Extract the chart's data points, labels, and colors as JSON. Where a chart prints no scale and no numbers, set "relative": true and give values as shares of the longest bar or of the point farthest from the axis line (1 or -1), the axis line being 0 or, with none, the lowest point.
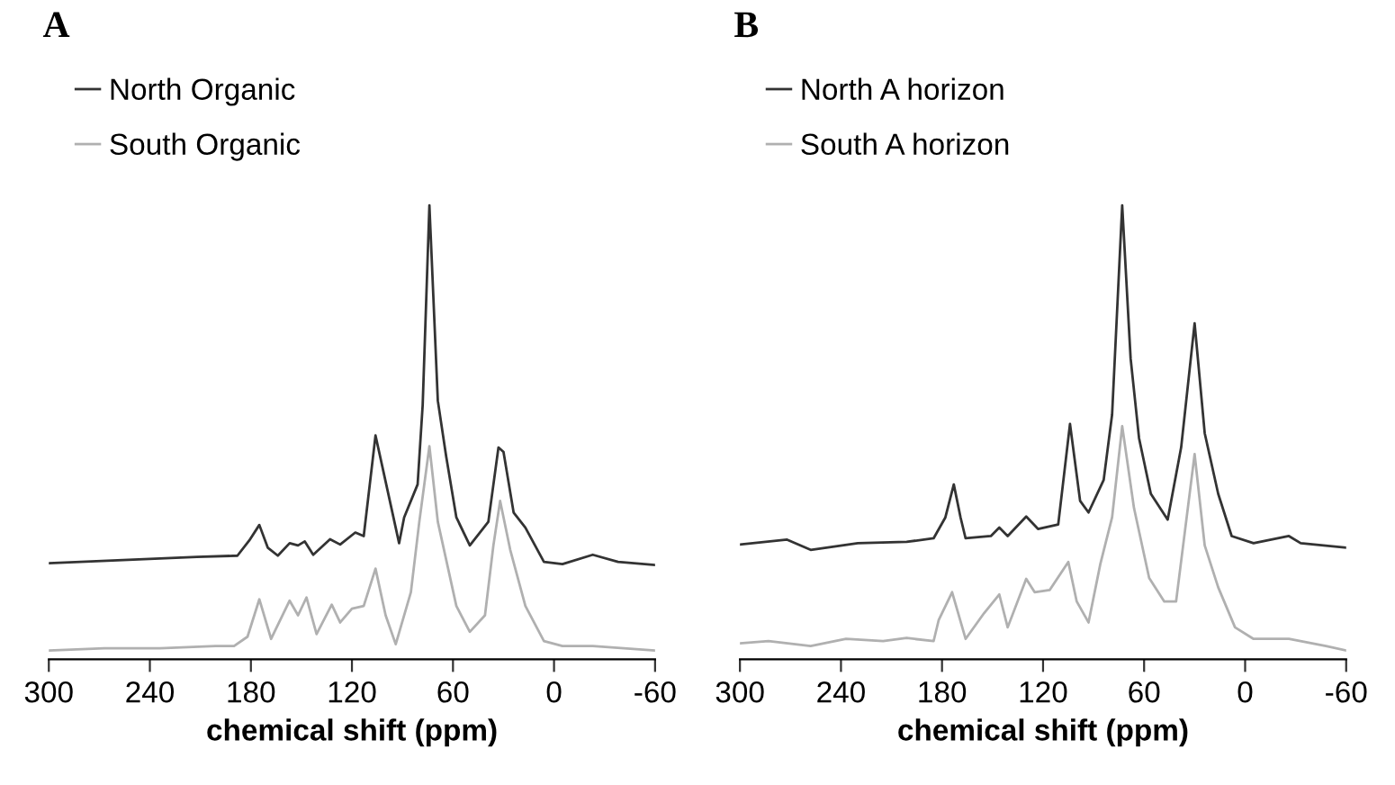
{
  "chart_data": [
    {
      "type": "line",
      "title": "A",
      "xlabel": "chemical shift (ppm)",
      "relative": true,
      "xlim": [
        300,
        -60
      ],
      "xticks": [
        300,
        240,
        180,
        120,
        60,
        0,
        -60
      ],
      "legend": "top left",
      "grid": false,
      "tick_labels": "x",
      "series": [
        {
          "name": "North Organic",
          "color": "#333333",
          "x": [
            300,
            256,
            212,
            188,
            181,
            175,
            170,
            164,
            157,
            152,
            148,
            143,
            133,
            127,
            118,
            113,
            106,
            102,
            92,
            89,
            81,
            78,
            74,
            69,
            64,
            58,
            50,
            39,
            33,
            30,
            24,
            17,
            6,
            -5,
            -23,
            -38,
            -60
          ],
          "values": [
            0.196,
            0.203,
            0.21,
            0.213,
            0.247,
            0.282,
            0.231,
            0.213,
            0.241,
            0.236,
            0.245,
            0.215,
            0.25,
            0.238,
            0.265,
            0.257,
            0.483,
            0.414,
            0.241,
            0.299,
            0.373,
            0.551,
            1.0,
            0.561,
            0.435,
            0.299,
            0.236,
            0.289,
            0.456,
            0.446,
            0.31,
            0.276,
            0.199,
            0.194,
            0.215,
            0.199,
            0.192
          ]
        },
        {
          "name": "South Organic",
          "color": "#b0b0b0",
          "x": [
            300,
            267,
            234,
            201,
            190,
            182,
            175,
            168,
            157,
            152,
            147,
            141,
            132,
            127,
            120,
            113,
            106,
            100,
            94,
            85,
            80,
            74,
            69,
            58,
            50,
            41,
            36,
            32,
            26,
            17,
            6,
            -5,
            -23,
            -60
          ],
          "values": [
            0.0,
            0.005,
            0.005,
            0.01,
            0.01,
            0.031,
            0.115,
            0.026,
            0.112,
            0.079,
            0.119,
            0.037,
            0.103,
            0.063,
            0.094,
            0.1,
            0.184,
            0.079,
            0.014,
            0.131,
            0.289,
            0.459,
            0.289,
            0.1,
            0.042,
            0.079,
            0.236,
            0.336,
            0.226,
            0.1,
            0.021,
            0.01,
            0.01,
            0.0
          ]
        }
      ]
    },
    {
      "type": "line",
      "title": "B",
      "xlabel": "chemical shift (ppm)",
      "relative": true,
      "xlim": [
        300,
        -60
      ],
      "xticks": [
        300,
        240,
        180,
        120,
        60,
        0,
        -60
      ],
      "legend": "top left",
      "grid": false,
      "tick_labels": "x",
      "series": [
        {
          "name": "North A horizon",
          "color": "#333333",
          "x": [
            300,
            272,
            258,
            230,
            201,
            185,
            178,
            173,
            169,
            166,
            151,
            146,
            141,
            130,
            123,
            111,
            104,
            98,
            93,
            84,
            79,
            73,
            68,
            63,
            56,
            46,
            38,
            30,
            24,
            16,
            8,
            -5,
            -26,
            -33,
            -60
          ],
          "values": [
            0.238,
            0.249,
            0.226,
            0.241,
            0.244,
            0.252,
            0.299,
            0.373,
            0.299,
            0.252,
            0.257,
            0.276,
            0.257,
            0.301,
            0.273,
            0.283,
            0.509,
            0.336,
            0.31,
            0.383,
            0.53,
            1.0,
            0.656,
            0.477,
            0.352,
            0.294,
            0.456,
            0.735,
            0.488,
            0.352,
            0.257,
            0.241,
            0.257,
            0.241,
            0.231
          ]
        },
        {
          "name": "South A horizon",
          "color": "#b0b0b0",
          "x": [
            300,
            283,
            258,
            237,
            215,
            201,
            185,
            182,
            174,
            166,
            155,
            146,
            141,
            130,
            125,
            116,
            105,
            100,
            93,
            86,
            79,
            73,
            66,
            57,
            48,
            41,
            30,
            24,
            16,
            6,
            -5,
            -26,
            -48,
            -60
          ],
          "values": [
            0.016,
            0.021,
            0.01,
            0.026,
            0.021,
            0.028,
            0.021,
            0.068,
            0.131,
            0.026,
            0.084,
            0.126,
            0.052,
            0.161,
            0.131,
            0.136,
            0.199,
            0.11,
            0.063,
            0.194,
            0.299,
            0.504,
            0.32,
            0.163,
            0.11,
            0.11,
            0.441,
            0.236,
            0.142,
            0.052,
            0.026,
            0.026,
            0.01,
            0.0
          ]
        }
      ]
    }
  ]
}
